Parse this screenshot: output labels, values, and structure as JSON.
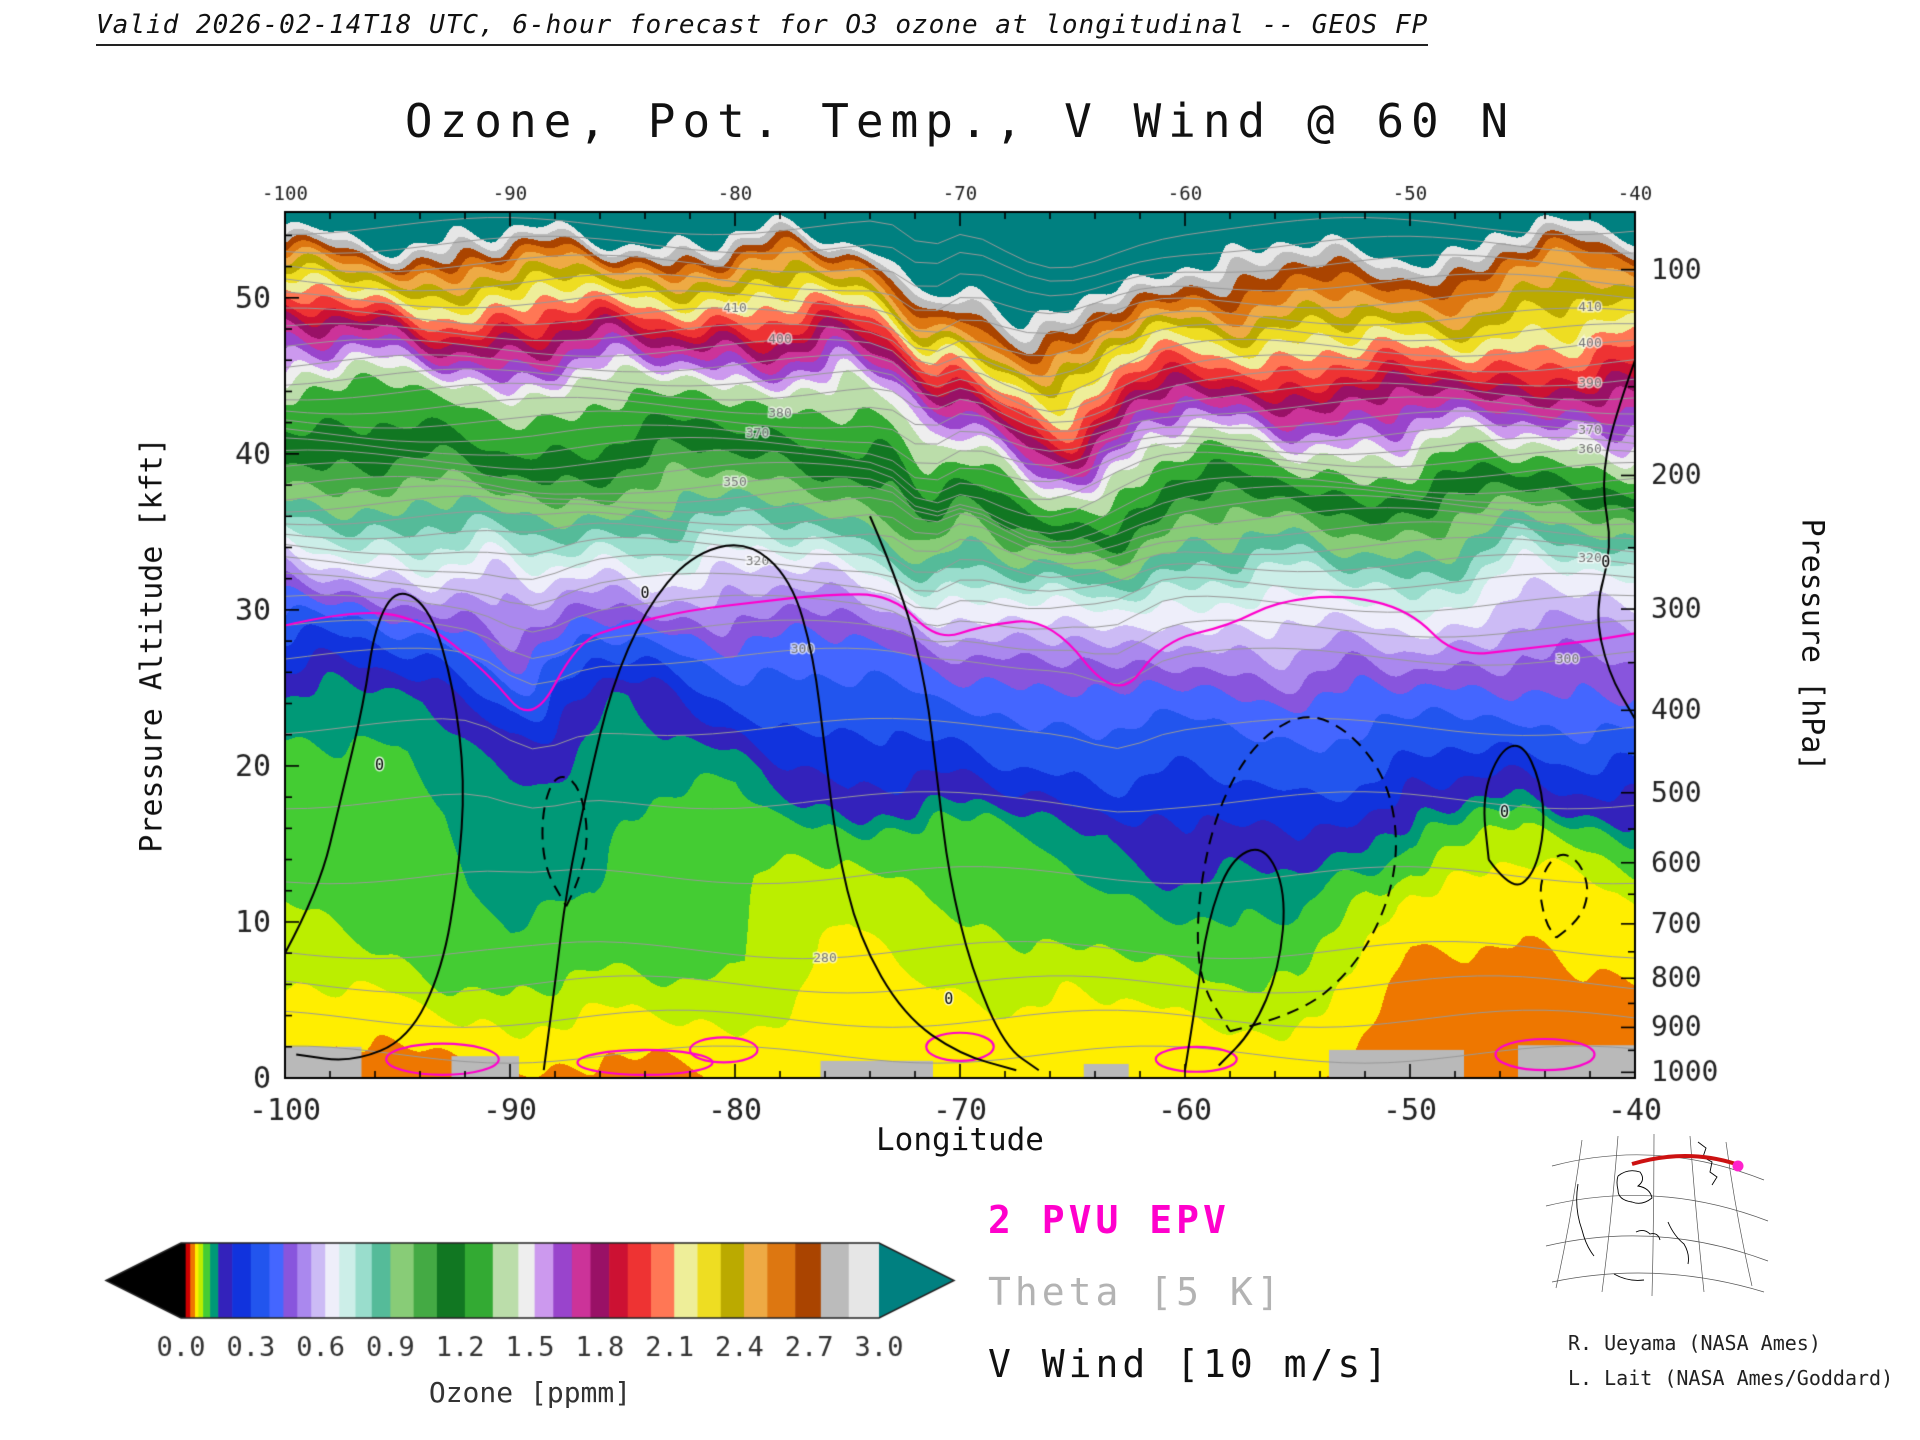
{
  "header": {
    "valid_line": "Valid 2026-02-14T18 UTC, 6-hour forecast for O3 ozone at longitudinal -- GEOS FP",
    "title": "Ozone, Pot. Temp., V Wind @ 60 N"
  },
  "axes": {
    "x": {
      "label": "Longitude",
      "ticks": [
        -100,
        -90,
        -80,
        -70,
        -60,
        -50,
        -40
      ],
      "minor_step": 2,
      "range": [
        -100,
        -40
      ]
    },
    "y_left": {
      "label": "Pressure Altitude [kft]",
      "ticks": [
        0,
        10,
        20,
        30,
        40,
        50
      ],
      "minor_step": 2,
      "range": [
        0,
        55.5
      ]
    },
    "y_right": {
      "label": "Pressure [hPa]",
      "ticks": [
        100,
        200,
        300,
        400,
        500,
        600,
        700,
        800,
        900,
        1000
      ],
      "minor_ticks": [
        150,
        250,
        350,
        450,
        550,
        650,
        750,
        850,
        950
      ]
    }
  },
  "colorbar": {
    "label": "Ozone [ppmm]",
    "ticks": [
      "0.0",
      "0.3",
      "0.6",
      "0.9",
      "1.2",
      "1.5",
      "1.8",
      "2.1",
      "2.4",
      "2.7",
      "3.0"
    ],
    "range": [
      0,
      3
    ],
    "under_color": "#000000",
    "over_color": "#008080"
  },
  "legend": [
    {
      "id": "pvu",
      "label": "2 PVU EPV",
      "color": "#ff00cc"
    },
    {
      "id": "theta",
      "label": "Theta [5 K]",
      "color": "#b3b3b3"
    },
    {
      "id": "vwind",
      "label": "V Wind [10 m/s]",
      "color": "#111111"
    }
  ],
  "credits": [
    "R. Ueyama (NASA Ames)",
    "L. Lait (NASA Ames/Goddard)"
  ],
  "chart_data": {
    "type": "heatmap",
    "title": "Ozone, Pot. Temp., V Wind @ 60 N",
    "xlabel": "Longitude",
    "ylabel": "Pressure Altitude [kft]",
    "ylabel_right": "Pressure [hPa]",
    "units": "ppmm",
    "lon_range": [
      -100,
      -40
    ],
    "alt_range": [
      0,
      55.5
    ],
    "lons": [
      -100,
      -95,
      -90,
      -85,
      -80,
      -75,
      -70,
      -65,
      -60,
      -55,
      -50,
      -45,
      -40
    ],
    "alts_kft": [
      0,
      4,
      8,
      12,
      16,
      20,
      24,
      28,
      32,
      36,
      40,
      44,
      48,
      52,
      55.5
    ],
    "ozone_ppmm": [
      [
        0.05,
        0.05,
        0.05,
        0.05,
        0.06,
        0.06,
        0.06,
        0.06,
        0.06,
        0.06,
        0.045,
        0.045,
        0.05
      ],
      [
        0.07,
        0.07,
        0.08,
        0.08,
        0.08,
        0.07,
        0.07,
        0.07,
        0.08,
        0.08,
        0.05,
        0.05,
        0.055
      ],
      [
        0.09,
        0.1,
        0.12,
        0.11,
        0.1,
        0.07,
        0.09,
        0.1,
        0.1,
        0.11,
        0.055,
        0.055,
        0.065
      ],
      [
        0.1,
        0.11,
        0.13,
        0.12,
        0.1,
        0.085,
        0.1,
        0.12,
        0.13,
        0.14,
        0.07,
        0.065,
        0.08
      ],
      [
        0.1,
        0.11,
        0.14,
        0.12,
        0.11,
        0.105,
        0.12,
        0.13,
        0.22,
        0.24,
        0.12,
        0.1,
        0.12
      ],
      [
        0.11,
        0.12,
        0.15,
        0.13,
        0.13,
        0.25,
        0.28,
        0.3,
        0.32,
        0.34,
        0.3,
        0.25,
        0.28
      ],
      [
        0.13,
        0.14,
        0.22,
        0.15,
        0.3,
        0.35,
        0.38,
        0.4,
        0.4,
        0.42,
        0.42,
        0.4,
        0.45
      ],
      [
        0.3,
        0.32,
        0.4,
        0.38,
        0.42,
        0.45,
        0.5,
        0.52,
        0.55,
        0.58,
        0.6,
        0.5,
        0.55
      ],
      [
        0.55,
        0.58,
        0.6,
        0.6,
        0.6,
        0.62,
        0.68,
        0.7,
        0.72,
        0.75,
        0.78,
        0.65,
        0.7
      ],
      [
        0.8,
        0.85,
        0.9,
        0.85,
        0.85,
        0.88,
        0.95,
        1.0,
        1.0,
        1.05,
        1.05,
        0.95,
        1.0
      ],
      [
        1.1,
        1.15,
        1.2,
        1.15,
        1.1,
        1.15,
        1.3,
        1.4,
        1.35,
        1.4,
        1.45,
        1.35,
        1.4
      ],
      [
        1.3,
        1.35,
        1.4,
        1.4,
        1.35,
        1.4,
        1.7,
        1.85,
        1.8,
        1.8,
        1.85,
        1.75,
        1.8
      ],
      [
        1.8,
        1.85,
        1.9,
        1.9,
        1.85,
        1.95,
        2.2,
        2.35,
        2.25,
        2.3,
        2.35,
        2.2,
        2.25
      ],
      [
        2.45,
        2.5,
        2.55,
        2.5,
        2.5,
        2.6,
        2.9,
        3.1,
        2.85,
        2.8,
        2.85,
        2.5,
        2.6
      ],
      [
        3.3,
        3.4,
        3.4,
        3.4,
        3.4,
        3.5,
        3.6,
        3.7,
        3.5,
        3.5,
        3.5,
        3.3,
        3.2
      ]
    ],
    "colormap": [
      {
        "v": -9,
        "c": "#000000"
      },
      {
        "v": 0.02,
        "c": "#cc0000"
      },
      {
        "v": 0.04,
        "c": "#ee7700"
      },
      {
        "v": 0.06,
        "c": "#ffee00"
      },
      {
        "v": 0.075,
        "c": "#bbee00"
      },
      {
        "v": 0.095,
        "c": "#44cc33"
      },
      {
        "v": 0.125,
        "c": "#00997 7"
      },
      {
        "v": 0.16,
        "c": "#3322bb"
      },
      {
        "v": 0.22,
        "c": "#1133dd"
      },
      {
        "v": 0.3,
        "c": "#2255ee"
      },
      {
        "v": 0.38,
        "c": "#4466ff"
      },
      {
        "v": 0.44,
        "c": "#8855dd"
      },
      {
        "v": 0.5,
        "c": "#aa88ee"
      },
      {
        "v": 0.56,
        "c": "#ccbbf5"
      },
      {
        "v": 0.62,
        "c": "#eeeefa"
      },
      {
        "v": 0.68,
        "c": "#cceee8"
      },
      {
        "v": 0.75,
        "c": "#99ddcc"
      },
      {
        "v": 0.82,
        "c": "#55bb99"
      },
      {
        "v": 0.9,
        "c": "#88cc77"
      },
      {
        "v": 1.0,
        "c": "#44aa44"
      },
      {
        "v": 1.1,
        "c": "#117722"
      },
      {
        "v": 1.22,
        "c": "#33aa33"
      },
      {
        "v": 1.34,
        "c": "#bbddaa"
      },
      {
        "v": 1.45,
        "c": "#eeeeee"
      },
      {
        "v": 1.52,
        "c": "#cc99ee"
      },
      {
        "v": 1.6,
        "c": "#9944cc"
      },
      {
        "v": 1.68,
        "c": "#cc3399"
      },
      {
        "v": 1.76,
        "c": "#991166"
      },
      {
        "v": 1.84,
        "c": "#cc1133"
      },
      {
        "v": 1.92,
        "c": "#ee3333"
      },
      {
        "v": 2.02,
        "c": "#ff7755"
      },
      {
        "v": 2.12,
        "c": "#eeee99"
      },
      {
        "v": 2.22,
        "c": "#eedd22"
      },
      {
        "v": 2.32,
        "c": "#bbaa00"
      },
      {
        "v": 2.42,
        "c": "#eeaa44"
      },
      {
        "v": 2.52,
        "c": "#dd7711"
      },
      {
        "v": 2.64,
        "c": "#aa4400"
      },
      {
        "v": 2.75,
        "c": "#bbbbbb"
      },
      {
        "v": 2.87,
        "c": "#e6e6e6"
      },
      {
        "v": 3.0,
        "c": "#008080"
      }
    ],
    "terrain_gray": [
      [
        -100,
        -96.6,
        2.0
      ],
      [
        -92.6,
        -89.6,
        1.4
      ],
      [
        -76.2,
        -71.2,
        1.1
      ],
      [
        -64.5,
        -62.5,
        0.9
      ],
      [
        -53.6,
        -47.6,
        1.8
      ],
      [
        -45.2,
        -40,
        2.1
      ]
    ],
    "terrain_color": "#b9b9b9",
    "theta_contours": {
      "color": "#999999",
      "levels": [
        [
          265,
          1.5
        ],
        [
          270,
          3.8
        ],
        [
          275,
          6.0
        ],
        [
          280,
          8.2
        ],
        [
          285,
          13.0
        ],
        [
          290,
          17.8
        ],
        [
          295,
          22.5
        ],
        [
          300,
          27.0
        ],
        [
          305,
          28.8
        ],
        [
          310,
          30.4
        ],
        [
          315,
          31.8
        ],
        [
          320,
          33.0
        ],
        [
          325,
          34.1
        ],
        [
          330,
          35.1
        ],
        [
          335,
          36.0
        ],
        [
          340,
          36.8
        ],
        [
          345,
          37.4
        ],
        [
          350,
          38.0
        ],
        [
          355,
          38.9
        ],
        [
          360,
          39.7
        ],
        [
          365,
          40.5
        ],
        [
          370,
          41.3
        ],
        [
          375,
          42.2
        ],
        [
          380,
          43.1
        ],
        [
          385,
          44.0
        ],
        [
          390,
          44.9
        ],
        [
          395,
          45.8
        ],
        [
          400,
          46.8
        ],
        [
          405,
          47.8
        ],
        [
          410,
          48.8
        ],
        [
          415,
          49.9
        ],
        [
          420,
          51.0
        ],
        [
          425,
          52.2
        ],
        [
          430,
          53.4
        ],
        [
          435,
          54.6
        ]
      ],
      "labels": [
        [
          280,
          -76
        ],
        [
          300,
          -77
        ],
        [
          300,
          -43
        ],
        [
          320,
          -79
        ],
        [
          320,
          -42
        ],
        [
          350,
          -80
        ],
        [
          360,
          -42
        ],
        [
          370,
          -79
        ],
        [
          370,
          -42
        ],
        [
          380,
          -78
        ],
        [
          390,
          -42
        ],
        [
          400,
          -78
        ],
        [
          400,
          -42
        ],
        [
          410,
          -80
        ],
        [
          410,
          -42
        ]
      ]
    },
    "epv_2pvu": {
      "color": "#ff00cc",
      "line": [
        [
          -100,
          29
        ],
        [
          -97,
          30
        ],
        [
          -94,
          29.5
        ],
        [
          -91,
          26
        ],
        [
          -89,
          22.5
        ],
        [
          -87,
          28
        ],
        [
          -85,
          29
        ],
        [
          -82,
          30
        ],
        [
          -79,
          30.5
        ],
        [
          -76,
          31
        ],
        [
          -73,
          31
        ],
        [
          -71,
          28
        ],
        [
          -69,
          29
        ],
        [
          -66,
          29.5
        ],
        [
          -63,
          24
        ],
        [
          -61,
          28
        ],
        [
          -58,
          29
        ],
        [
          -56,
          30.5
        ],
        [
          -53,
          31
        ],
        [
          -50,
          30
        ],
        [
          -48,
          27
        ],
        [
          -45,
          27.5
        ],
        [
          -42,
          28
        ],
        [
          -40,
          28.5
        ]
      ],
      "loops": [
        {
          "lon": -93,
          "alt": 1.2,
          "rx": 2.5,
          "ry": 1.0
        },
        {
          "lon": -84,
          "alt": 1.0,
          "rx": 3.0,
          "ry": 0.8
        },
        {
          "lon": -80.5,
          "alt": 1.8,
          "rx": 1.5,
          "ry": 0.8
        },
        {
          "lon": -70,
          "alt": 2.0,
          "rx": 1.5,
          "ry": 0.9
        },
        {
          "lon": -59.5,
          "alt": 1.2,
          "rx": 1.8,
          "ry": 0.8
        },
        {
          "lon": -44,
          "alt": 1.5,
          "rx": 2.2,
          "ry": 1.0
        }
      ]
    },
    "v_wind": {
      "color": "#000000",
      "solid": [
        [
          [
            -100,
            8
          ],
          [
            -98.5,
            12
          ],
          [
            -97.5,
            18
          ],
          [
            -96.5,
            24
          ],
          [
            -96,
            29
          ],
          [
            -95,
            31.5
          ],
          [
            -93.5,
            30
          ],
          [
            -92.5,
            25
          ],
          [
            -92,
            19
          ],
          [
            -92.3,
            13
          ],
          [
            -93,
            7
          ],
          [
            -94.5,
            2.5
          ],
          [
            -97,
            1
          ],
          [
            -99.5,
            1.5
          ]
        ],
        [
          [
            -88.5,
            0.5
          ],
          [
            -88,
            6
          ],
          [
            -87.5,
            12
          ],
          [
            -86.5,
            19
          ],
          [
            -85.5,
            25
          ],
          [
            -84,
            30
          ],
          [
            -82,
            33.5
          ],
          [
            -79.5,
            34.5
          ],
          [
            -77.5,
            32
          ],
          [
            -76.5,
            27
          ],
          [
            -76,
            21
          ],
          [
            -75.5,
            15
          ],
          [
            -74.5,
            9
          ],
          [
            -72.5,
            4
          ],
          [
            -70,
            1.5
          ],
          [
            -67.5,
            0.5
          ]
        ],
        [
          [
            -74,
            36
          ],
          [
            -72.5,
            31
          ],
          [
            -71.5,
            25
          ],
          [
            -71,
            19
          ],
          [
            -70.5,
            13
          ],
          [
            -69.5,
            7
          ],
          [
            -68,
            2
          ],
          [
            -66.5,
            0.5
          ]
        ],
        [
          [
            -46.5,
            14
          ],
          [
            -45.5,
            12
          ],
          [
            -44.5,
            13
          ],
          [
            -44,
            16
          ],
          [
            -44.2,
            19
          ],
          [
            -45,
            21.5
          ],
          [
            -46,
            21
          ],
          [
            -46.8,
            18
          ],
          [
            -46.5,
            14
          ]
        ],
        [
          [
            -40,
            46
          ],
          [
            -41,
            42
          ],
          [
            -41.5,
            38
          ],
          [
            -41,
            34
          ],
          [
            -41.8,
            30
          ],
          [
            -41.2,
            26
          ],
          [
            -40,
            23
          ]
        ],
        [
          [
            -60,
            0.5
          ],
          [
            -59.5,
            5
          ],
          [
            -59,
            10
          ],
          [
            -58,
            14
          ],
          [
            -56.5,
            15
          ],
          [
            -55.5,
            12
          ],
          [
            -55.8,
            7
          ],
          [
            -57,
            3
          ],
          [
            -58.5,
            0.8
          ]
        ]
      ],
      "dashed": [
        [
          [
            -87.5,
            11
          ],
          [
            -86.8,
            13
          ],
          [
            -86.5,
            16
          ],
          [
            -87,
            19
          ],
          [
            -88,
            19.5
          ],
          [
            -88.6,
            17
          ],
          [
            -88.5,
            13.5
          ],
          [
            -87.5,
            11
          ]
        ],
        [
          [
            -58,
            3
          ],
          [
            -55,
            4
          ],
          [
            -52.5,
            7
          ],
          [
            -51,
            11
          ],
          [
            -50.5,
            15
          ],
          [
            -51,
            19
          ],
          [
            -52.5,
            22
          ],
          [
            -54.5,
            23.5
          ],
          [
            -56.5,
            22
          ],
          [
            -58,
            19
          ],
          [
            -59,
            15
          ],
          [
            -59.5,
            10
          ],
          [
            -59.3,
            6
          ],
          [
            -58,
            3
          ]
        ],
        [
          [
            -43.5,
            9
          ],
          [
            -42.5,
            10
          ],
          [
            -42,
            12
          ],
          [
            -42.5,
            14
          ],
          [
            -43.5,
            14.5
          ],
          [
            -44.3,
            12.5
          ],
          [
            -44,
            10
          ],
          [
            -43.5,
            9
          ]
        ]
      ],
      "zero_labels": [
        {
          "lon": -95.8,
          "alt": 20,
          "text": "0"
        },
        {
          "lon": -84,
          "alt": 31,
          "text": "0"
        },
        {
          "lon": -70.5,
          "alt": 5,
          "text": "0"
        },
        {
          "lon": -45.8,
          "alt": 17,
          "text": "0"
        },
        {
          "lon": -41.3,
          "alt": 33,
          "text": "0"
        }
      ]
    }
  }
}
